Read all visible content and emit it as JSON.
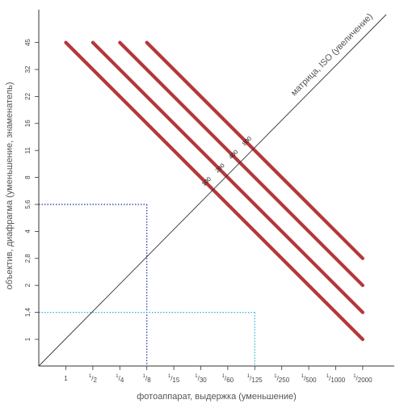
{
  "diagram": {
    "x_axis_title": "фотоаппарат, выдержка (уменьшение)",
    "y_axis_title": "объектив, диафрагма (уменьшение, знаменатель)",
    "diagonal_label": "матрица, ISO (увеличение)",
    "x_ticks": [
      {
        "num": "",
        "den": "1"
      },
      {
        "num": "1",
        "den": "2"
      },
      {
        "num": "1",
        "den": "4"
      },
      {
        "num": "1",
        "den": "8"
      },
      {
        "num": "1",
        "den": "15"
      },
      {
        "num": "1",
        "den": "30"
      },
      {
        "num": "1",
        "den": "60"
      },
      {
        "num": "1",
        "den": "125"
      },
      {
        "num": "1",
        "den": "250"
      },
      {
        "num": "1",
        "den": "500"
      },
      {
        "num": "1",
        "den": "1000"
      },
      {
        "num": "1",
        "den": "2000"
      }
    ],
    "y_ticks": [
      "1",
      "1,4",
      "2",
      "2,8",
      "4",
      "5,6",
      "8",
      "11",
      "16",
      "22",
      "32",
      "45"
    ],
    "iso_lines": [
      {
        "label": "100",
        "exposure_sum_steps": 11
      },
      {
        "label": "200",
        "exposure_sum_steps": 12
      },
      {
        "label": "400",
        "exposure_sum_steps": 13
      },
      {
        "label": "800",
        "exposure_sum_steps": 14
      }
    ],
    "guides": [
      {
        "shutter": "1/8",
        "aperture": "5,6",
        "color": "#1f2fa8"
      },
      {
        "shutter": "1/125",
        "aperture": "1,4",
        "color": "#2ab0d8"
      }
    ],
    "colors": {
      "iso_line": "#b5373a",
      "axis": "#333333",
      "grid_tick": "#888888"
    }
  }
}
